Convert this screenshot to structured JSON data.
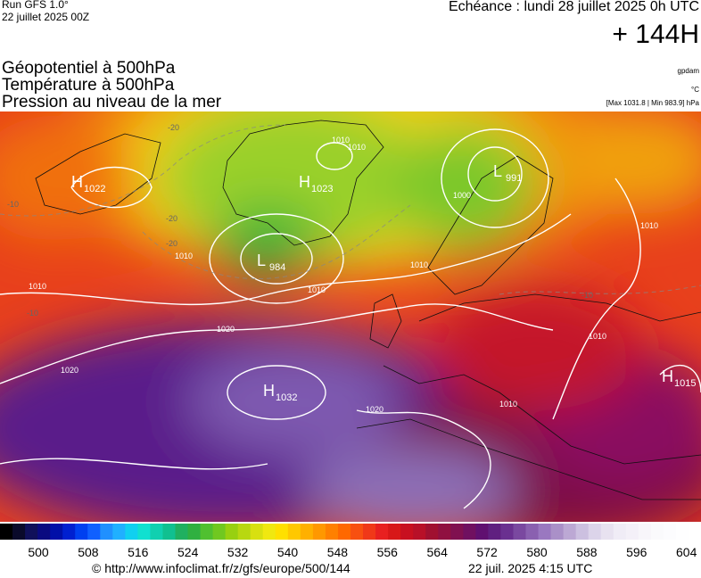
{
  "header": {
    "run": "Run GFS 1.0°",
    "run_date": "22 juillet 2025 00Z",
    "echeance": "Echéance : lundi 28 juillet 2025 0h UTC",
    "lead": "+ 144H"
  },
  "titles": [
    "Géopotentiel à 500hPa",
    "Température à 500hPa",
    "Pression au niveau de la mer"
  ],
  "units": [
    "gpdam",
    "°C",
    "[Max 1031.8 | Min 983.9] hPa"
  ],
  "centers": [
    {
      "letter": "H",
      "value": "1022"
    },
    {
      "letter": "H",
      "value": "1023"
    },
    {
      "letter": "L",
      "value": "984"
    },
    {
      "letter": "L",
      "value": "991"
    },
    {
      "letter": "H",
      "value": "1032"
    },
    {
      "letter": "H",
      "value": "1015"
    }
  ],
  "isobar_labels": [
    "1010",
    "1010",
    "1000",
    "1010",
    "1010",
    "1010",
    "1020",
    "1020",
    "1020",
    "1010",
    "1010",
    "1010",
    "1010"
  ],
  "temperature_labels": [
    "-20",
    "-20",
    "-20",
    "-10",
    "-10",
    "-10"
  ],
  "legend_ticks": [
    "500",
    "508",
    "516",
    "524",
    "532",
    "540",
    "548",
    "556",
    "564",
    "572",
    "580",
    "588",
    "596",
    "604"
  ],
  "footer": {
    "url": "© http://www.infoclimat.fr/z/gfs/europe/500/144",
    "timestamp": "22 juil. 2025  4:15 UTC"
  }
}
